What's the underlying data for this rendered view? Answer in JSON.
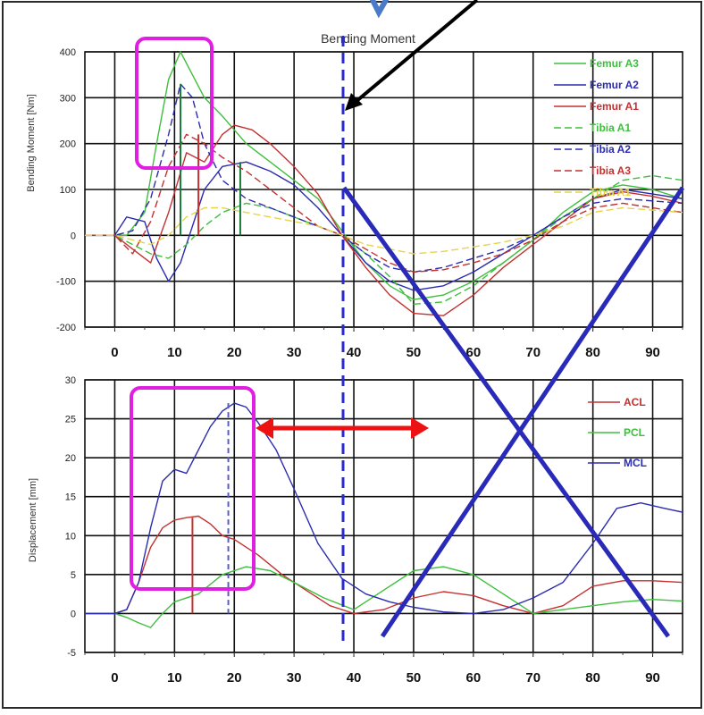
{
  "chart_data": [
    {
      "type": "line",
      "title": "Bending Moment",
      "ylabel": "Bending Moment [Nm]",
      "xlabel": "",
      "xlim": [
        -5,
        95
      ],
      "ylim": [
        -200,
        400
      ],
      "xticks": [
        0,
        10,
        20,
        30,
        40,
        50,
        60,
        70,
        80,
        90
      ],
      "yticks": [
        -200,
        -100,
        0,
        100,
        200,
        300,
        400
      ],
      "grid": true,
      "legend_position": "top-right",
      "series": [
        {
          "name": "Femur A3",
          "color": "#3dbf3d",
          "dash": "solid",
          "x": [
            -5,
            0,
            2,
            5,
            7,
            9,
            11,
            13,
            15,
            18,
            22,
            26,
            30,
            34,
            38,
            42,
            46,
            50,
            55,
            60,
            65,
            70,
            75,
            80,
            85,
            90,
            95
          ],
          "y": [
            0,
            0,
            0,
            50,
            200,
            340,
            400,
            350,
            300,
            260,
            200,
            160,
            120,
            80,
            10,
            -60,
            -110,
            -140,
            -130,
            -100,
            -60,
            -10,
            50,
            95,
            110,
            100,
            80
          ]
        },
        {
          "name": "Femur A2",
          "color": "#2b2bb0",
          "dash": "solid",
          "x": [
            -5,
            0,
            2,
            5,
            7,
            9,
            11,
            13,
            15,
            18,
            22,
            26,
            30,
            34,
            38,
            42,
            46,
            50,
            55,
            60,
            65,
            70,
            75,
            80,
            85,
            90,
            95
          ],
          "y": [
            0,
            0,
            40,
            30,
            -50,
            -100,
            -60,
            20,
            100,
            150,
            160,
            140,
            110,
            60,
            0,
            -60,
            -100,
            -120,
            -110,
            -80,
            -40,
            0,
            40,
            80,
            100,
            90,
            80
          ]
        },
        {
          "name": "Femur A1",
          "color": "#c43030",
          "dash": "solid",
          "x": [
            -5,
            0,
            3,
            6,
            9,
            12,
            15,
            18,
            20,
            23,
            26,
            30,
            34,
            38,
            42,
            46,
            50,
            55,
            60,
            65,
            70,
            75,
            80,
            85,
            90,
            95
          ],
          "y": [
            0,
            0,
            -30,
            -60,
            50,
            180,
            160,
            220,
            240,
            230,
            200,
            150,
            90,
            0,
            -70,
            -130,
            -170,
            -175,
            -130,
            -70,
            -20,
            30,
            80,
            95,
            85,
            70
          ]
        },
        {
          "name": "Tibia A1",
          "color": "#3dbf3d",
          "dash": "dashed",
          "x": [
            -5,
            0,
            3,
            6,
            9,
            12,
            15,
            18,
            22,
            26,
            30,
            34,
            38,
            42,
            46,
            50,
            55,
            60,
            65,
            70,
            75,
            80,
            85,
            90,
            95
          ],
          "y": [
            0,
            0,
            -20,
            -40,
            -50,
            -20,
            20,
            50,
            70,
            60,
            40,
            20,
            0,
            -40,
            -90,
            -150,
            -145,
            -110,
            -60,
            -10,
            40,
            80,
            120,
            130,
            120
          ]
        },
        {
          "name": "Tibia A2",
          "color": "#2b2bb0",
          "dash": "dashed",
          "x": [
            -5,
            0,
            3,
            6,
            9,
            11,
            13,
            15,
            18,
            22,
            26,
            30,
            34,
            38,
            42,
            46,
            50,
            55,
            60,
            65,
            70,
            75,
            80,
            85,
            90,
            95
          ],
          "y": [
            0,
            0,
            10,
            80,
            220,
            330,
            300,
            200,
            120,
            80,
            60,
            40,
            20,
            0,
            -40,
            -70,
            -80,
            -70,
            -50,
            -30,
            0,
            40,
            70,
            80,
            75,
            70
          ]
        },
        {
          "name": "Tibia A3",
          "color": "#c43030",
          "dash": "dashed",
          "x": [
            -5,
            0,
            3,
            6,
            9,
            12,
            15,
            18,
            22,
            26,
            30,
            34,
            38,
            42,
            46,
            50,
            55,
            60,
            65,
            70,
            75,
            80,
            85,
            90,
            95
          ],
          "y": [
            0,
            0,
            -40,
            30,
            150,
            220,
            200,
            170,
            140,
            100,
            60,
            20,
            0,
            -30,
            -60,
            -80,
            -75,
            -60,
            -40,
            -10,
            30,
            60,
            70,
            60,
            50
          ]
        },
        {
          "name": "Tibia A1",
          "color": "#e6d34a",
          "dash": "dashed",
          "x": [
            -5,
            0,
            3,
            6,
            9,
            12,
            15,
            18,
            22,
            26,
            30,
            34,
            38,
            42,
            46,
            50,
            55,
            60,
            65,
            70,
            75,
            80,
            85,
            90,
            95
          ],
          "y": [
            0,
            0,
            -10,
            -20,
            0,
            40,
            60,
            60,
            50,
            40,
            30,
            20,
            0,
            -20,
            -30,
            -40,
            -35,
            -25,
            -15,
            0,
            20,
            50,
            60,
            55,
            50
          ]
        }
      ],
      "markers": [
        {
          "x": 11,
          "y": 330,
          "color": "#1a7a3a"
        },
        {
          "x": 14,
          "y": 220,
          "color": "#c43030"
        },
        {
          "x": 21,
          "y": 160,
          "color": "#1a7a3a"
        }
      ]
    },
    {
      "type": "line",
      "title": "",
      "ylabel": "Displacement [mm]",
      "xlabel": "",
      "xlim": [
        -5,
        95
      ],
      "ylim": [
        -5,
        30
      ],
      "xticks": [
        0,
        10,
        20,
        30,
        40,
        50,
        60,
        70,
        80,
        90
      ],
      "yticks": [
        -5,
        0,
        5,
        10,
        15,
        20,
        25,
        30
      ],
      "grid": true,
      "legend_position": "top-right",
      "series": [
        {
          "name": "ACL",
          "color": "#c43030",
          "dash": "solid",
          "x": [
            -5,
            0,
            2,
            4,
            6,
            8,
            10,
            12,
            14,
            16,
            18,
            20,
            24,
            28,
            32,
            36,
            40,
            45,
            50,
            55,
            60,
            65,
            70,
            75,
            80,
            85,
            90,
            95
          ],
          "y": [
            0,
            0,
            0.5,
            4,
            8.5,
            11,
            12,
            12.3,
            12.5,
            11.5,
            10,
            9.5,
            7.5,
            5,
            3,
            1,
            0,
            0.5,
            2,
            2.8,
            2.3,
            1,
            0,
            1,
            3.5,
            4.2,
            4.2,
            4
          ]
        },
        {
          "name": "PCL",
          "color": "#3dbf3d",
          "dash": "solid",
          "x": [
            -5,
            0,
            2,
            4,
            6,
            8,
            10,
            14,
            18,
            22,
            26,
            30,
            35,
            40,
            45,
            50,
            55,
            60,
            65,
            70,
            75,
            80,
            85,
            90,
            95
          ],
          "y": [
            0,
            0,
            -0.5,
            -1.2,
            -1.8,
            0,
            1.5,
            2.5,
            5,
            6,
            5.5,
            4,
            2,
            0.5,
            3,
            5.5,
            6,
            5,
            2.5,
            0,
            0.5,
            1,
            1.5,
            1.8,
            1.6
          ]
        },
        {
          "name": "MCL",
          "color": "#2b2bb0",
          "dash": "solid",
          "x": [
            -5,
            0,
            2,
            4,
            6,
            8,
            10,
            12,
            14,
            16,
            18,
            20,
            22,
            24,
            27,
            30,
            34,
            38,
            42,
            46,
            50,
            55,
            60,
            65,
            70,
            75,
            80,
            84,
            88,
            92,
            95
          ],
          "y": [
            0,
            0,
            0.5,
            4,
            11,
            17,
            18.5,
            18,
            21,
            24,
            26,
            27,
            26.5,
            24.5,
            21,
            16,
            9,
            4.5,
            2.5,
            1.5,
            0.8,
            0.2,
            0,
            0.5,
            2,
            4,
            9,
            13.5,
            14.2,
            13.5,
            13
          ]
        }
      ],
      "markers": [
        {
          "x": 13,
          "y": 12.3,
          "color": "#c43030"
        },
        {
          "x": 19,
          "y": 27,
          "color": "#5a5ad0"
        }
      ]
    }
  ]
}
